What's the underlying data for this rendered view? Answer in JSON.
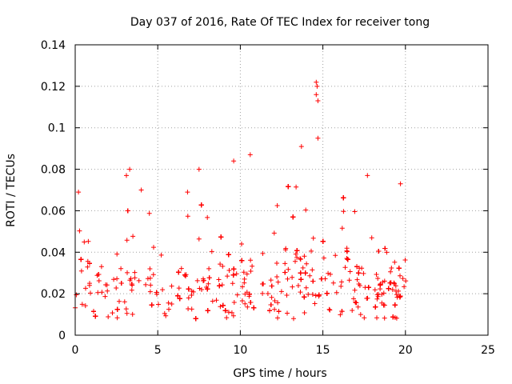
{
  "chart_data": {
    "type": "scatter",
    "title": "Day 037 of 2016, Rate Of TEC Index for receiver tong",
    "xlabel": "GPS time / hours",
    "ylabel": "ROTI / TECUs",
    "xlim": [
      0,
      25
    ],
    "ylim": [
      0,
      0.14
    ],
    "x_ticks": [
      0,
      5,
      10,
      15,
      20,
      25
    ],
    "x_tick_labels": [
      "0",
      "5",
      "10",
      "15",
      "20",
      "25"
    ],
    "y_ticks": [
      0,
      0.02,
      0.04,
      0.06,
      0.08,
      0.1,
      0.12,
      0.14
    ],
    "y_tick_labels": [
      "0",
      "0.02",
      "0.04",
      "0.06",
      "0.08",
      "0.1",
      "0.12",
      "0.14"
    ],
    "grid": true,
    "marker": "+",
    "series": [
      {
        "name": "ROTI",
        "color": "#ff0000",
        "x_range": [
          0,
          20.1
        ],
        "gap_hours": [
          10.95,
          11.3
        ],
        "typical_baseline": 0.018,
        "min_value": 0.004,
        "max_value": 0.122,
        "notable_points": [
          {
            "x": 0.2,
            "y": 0.069
          },
          {
            "x": 3.1,
            "y": 0.077
          },
          {
            "x": 3.3,
            "y": 0.08
          },
          {
            "x": 4.0,
            "y": 0.07
          },
          {
            "x": 6.8,
            "y": 0.069
          },
          {
            "x": 7.5,
            "y": 0.08
          },
          {
            "x": 9.6,
            "y": 0.084
          },
          {
            "x": 10.6,
            "y": 0.087
          },
          {
            "x": 13.7,
            "y": 0.091
          },
          {
            "x": 14.6,
            "y": 0.122
          },
          {
            "x": 14.65,
            "y": 0.12
          },
          {
            "x": 14.6,
            "y": 0.116
          },
          {
            "x": 14.7,
            "y": 0.113
          },
          {
            "x": 14.7,
            "y": 0.095
          },
          {
            "x": 17.7,
            "y": 0.077
          },
          {
            "x": 19.7,
            "y": 0.073
          }
        ]
      }
    ]
  }
}
